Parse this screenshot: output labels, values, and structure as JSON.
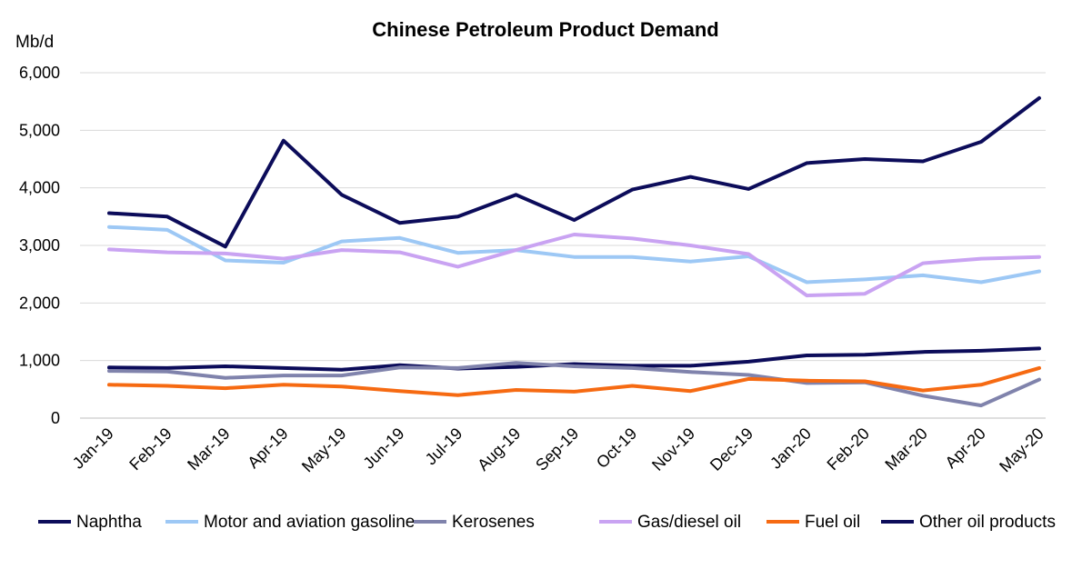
{
  "chart_data": {
    "type": "line",
    "title": "Chinese Petroleum Product Demand",
    "ylabel": "Mb/d",
    "xlabel": "",
    "ylim": [
      0,
      6000
    ],
    "yticks": [
      "0",
      "1,000",
      "2,000",
      "3,000",
      "4,000",
      "5,000",
      "6,000"
    ],
    "grid": true,
    "legend_position": "bottom",
    "categories": [
      "Jan-19",
      "Feb-19",
      "Mar-19",
      "Apr-19",
      "May-19",
      "Jun-19",
      "Jul-19",
      "Aug-19",
      "Sep-19",
      "Oct-19",
      "Nov-19",
      "Dec-19",
      "Jan-20",
      "Feb-20",
      "Mar-20",
      "Apr-20",
      "May-20"
    ],
    "series": [
      {
        "name": "Naphtha",
        "color": "#0c0c5a",
        "values": [
          880,
          870,
          900,
          870,
          840,
          920,
          860,
          890,
          940,
          910,
          910,
          980,
          1090,
          1100,
          1150,
          1170,
          1210
        ]
      },
      {
        "name": "Motor and aviation gasoline",
        "color": "#9dc8f5",
        "values": [
          3320,
          3270,
          2740,
          2700,
          3070,
          3130,
          2870,
          2920,
          2800,
          2800,
          2720,
          2810,
          2360,
          2410,
          2480,
          2360,
          2550
        ]
      },
      {
        "name": "Kerosenes",
        "color": "#8083ac",
        "values": [
          820,
          810,
          700,
          740,
          740,
          880,
          870,
          960,
          900,
          870,
          800,
          750,
          610,
          620,
          390,
          220,
          670
        ]
      },
      {
        "name": "Gas/diesel oil",
        "color": "#c9a3f2",
        "values": [
          2930,
          2880,
          2860,
          2770,
          2920,
          2880,
          2630,
          2920,
          3190,
          3120,
          3000,
          2850,
          2130,
          2160,
          2690,
          2770,
          2800
        ]
      },
      {
        "name": "Fuel oil",
        "color": "#f66a12",
        "values": [
          580,
          560,
          520,
          580,
          550,
          470,
          400,
          490,
          460,
          560,
          470,
          680,
          650,
          640,
          480,
          580,
          870
        ]
      },
      {
        "name": "Other oil products",
        "color": "#0c0c5a",
        "values": [
          3560,
          3500,
          2980,
          4820,
          3880,
          3390,
          3500,
          3880,
          3440,
          3970,
          4190,
          3980,
          4430,
          4500,
          4460,
          4800,
          5560
        ]
      }
    ]
  }
}
